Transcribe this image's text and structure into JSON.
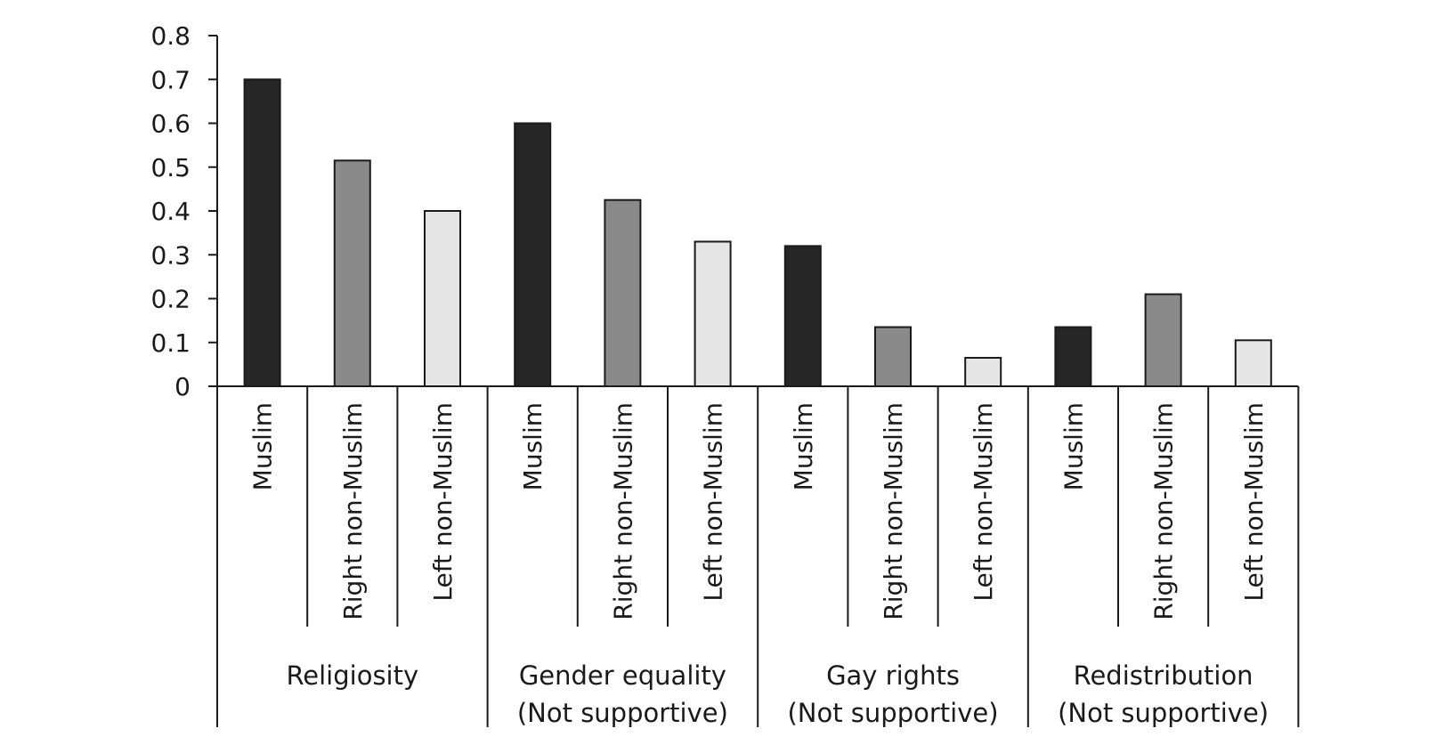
{
  "chart_data": {
    "type": "bar",
    "title": "",
    "xlabel": "",
    "ylabel": "",
    "ylim": [
      0,
      0.8
    ],
    "yticks": [
      "0",
      "0.1",
      "0.2",
      "0.3",
      "0.4",
      "0.5",
      "0.6",
      "0.7",
      "0.8"
    ],
    "grid": false,
    "legend": "none",
    "colors": {
      "Muslim": "#262626",
      "Right non-Muslim": "#8a8a8a",
      "Left non-Muslim": "#e6e6e6"
    },
    "groups": [
      {
        "label_lines": [
          "Religiosity"
        ],
        "bars": [
          {
            "category": "Muslim",
            "value": 0.7
          },
          {
            "category": "Right non-Muslim",
            "value": 0.515
          },
          {
            "category": "Left non-Muslim",
            "value": 0.4
          }
        ]
      },
      {
        "label_lines": [
          "Gender equality",
          "(Not supportive)"
        ],
        "bars": [
          {
            "category": "Muslim",
            "value": 0.6
          },
          {
            "category": "Right non-Muslim",
            "value": 0.425
          },
          {
            "category": "Left non-Muslim",
            "value": 0.33
          }
        ]
      },
      {
        "label_lines": [
          "Gay rights",
          "(Not supportive)"
        ],
        "bars": [
          {
            "category": "Muslim",
            "value": 0.32
          },
          {
            "category": "Right non-Muslim",
            "value": 0.135
          },
          {
            "category": "Left non-Muslim",
            "value": 0.065
          }
        ]
      },
      {
        "label_lines": [
          "Redistribution",
          "(Not supportive)"
        ],
        "bars": [
          {
            "category": "Muslim",
            "value": 0.135
          },
          {
            "category": "Right non-Muslim",
            "value": 0.21
          },
          {
            "category": "Left non-Muslim",
            "value": 0.105
          }
        ]
      }
    ]
  }
}
